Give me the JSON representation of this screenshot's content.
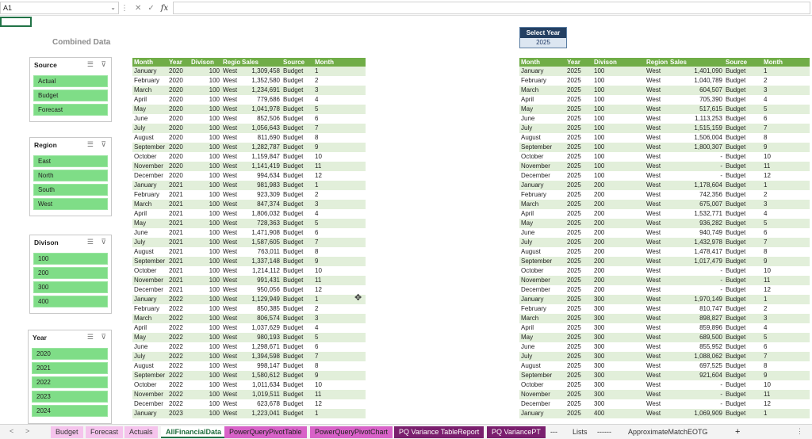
{
  "formula_bar": {
    "cell_ref": "A1",
    "fx": "fx",
    "cancel": "✕",
    "enter": "✓",
    "dots": "⋮"
  },
  "combined_title": "Combined Data",
  "slicers": [
    {
      "title": "Source",
      "items": [
        "Actual",
        "Budget",
        "Forecast"
      ]
    },
    {
      "title": "Region",
      "items": [
        "East",
        "North",
        "South",
        "West"
      ]
    },
    {
      "title": "Divison",
      "items": [
        "100",
        "200",
        "300",
        "400"
      ]
    },
    {
      "title": "Year",
      "items": [
        "2020",
        "2021",
        "2022",
        "2023",
        "2024"
      ]
    }
  ],
  "select_year": {
    "label": "Select Year",
    "value": "2025"
  },
  "left_table": {
    "headers": [
      "Month",
      "Year",
      "Divison",
      "Region",
      "Sales",
      "Source",
      "Month"
    ],
    "rows": [
      [
        "January",
        "2020",
        "100",
        "West",
        "1,309,458",
        "Budget",
        "1"
      ],
      [
        "February",
        "2020",
        "100",
        "West",
        "1,352,580",
        "Budget",
        "2"
      ],
      [
        "March",
        "2020",
        "100",
        "West",
        "1,234,691",
        "Budget",
        "3"
      ],
      [
        "April",
        "2020",
        "100",
        "West",
        "779,686",
        "Budget",
        "4"
      ],
      [
        "May",
        "2020",
        "100",
        "West",
        "1,041,978",
        "Budget",
        "5"
      ],
      [
        "June",
        "2020",
        "100",
        "West",
        "852,506",
        "Budget",
        "6"
      ],
      [
        "July",
        "2020",
        "100",
        "West",
        "1,056,643",
        "Budget",
        "7"
      ],
      [
        "August",
        "2020",
        "100",
        "West",
        "811,690",
        "Budget",
        "8"
      ],
      [
        "September",
        "2020",
        "100",
        "West",
        "1,282,787",
        "Budget",
        "9"
      ],
      [
        "October",
        "2020",
        "100",
        "West",
        "1,159,847",
        "Budget",
        "10"
      ],
      [
        "November",
        "2020",
        "100",
        "West",
        "1,141,419",
        "Budget",
        "11"
      ],
      [
        "December",
        "2020",
        "100",
        "West",
        "994,634",
        "Budget",
        "12"
      ],
      [
        "January",
        "2021",
        "100",
        "West",
        "981,983",
        "Budget",
        "1"
      ],
      [
        "February",
        "2021",
        "100",
        "West",
        "923,309",
        "Budget",
        "2"
      ],
      [
        "March",
        "2021",
        "100",
        "West",
        "847,374",
        "Budget",
        "3"
      ],
      [
        "April",
        "2021",
        "100",
        "West",
        "1,806,032",
        "Budget",
        "4"
      ],
      [
        "May",
        "2021",
        "100",
        "West",
        "728,363",
        "Budget",
        "5"
      ],
      [
        "June",
        "2021",
        "100",
        "West",
        "1,471,908",
        "Budget",
        "6"
      ],
      [
        "July",
        "2021",
        "100",
        "West",
        "1,587,605",
        "Budget",
        "7"
      ],
      [
        "August",
        "2021",
        "100",
        "West",
        "763,011",
        "Budget",
        "8"
      ],
      [
        "September",
        "2021",
        "100",
        "West",
        "1,337,148",
        "Budget",
        "9"
      ],
      [
        "October",
        "2021",
        "100",
        "West",
        "1,214,112",
        "Budget",
        "10"
      ],
      [
        "November",
        "2021",
        "100",
        "West",
        "991,431",
        "Budget",
        "11"
      ],
      [
        "December",
        "2021",
        "100",
        "West",
        "950,056",
        "Budget",
        "12"
      ],
      [
        "January",
        "2022",
        "100",
        "West",
        "1,129,949",
        "Budget",
        "1"
      ],
      [
        "February",
        "2022",
        "100",
        "West",
        "850,385",
        "Budget",
        "2"
      ],
      [
        "March",
        "2022",
        "100",
        "West",
        "806,574",
        "Budget",
        "3"
      ],
      [
        "April",
        "2022",
        "100",
        "West",
        "1,037,629",
        "Budget",
        "4"
      ],
      [
        "May",
        "2022",
        "100",
        "West",
        "980,193",
        "Budget",
        "5"
      ],
      [
        "June",
        "2022",
        "100",
        "West",
        "1,298,671",
        "Budget",
        "6"
      ],
      [
        "July",
        "2022",
        "100",
        "West",
        "1,394,598",
        "Budget",
        "7"
      ],
      [
        "August",
        "2022",
        "100",
        "West",
        "998,147",
        "Budget",
        "8"
      ],
      [
        "September",
        "2022",
        "100",
        "West",
        "1,580,612",
        "Budget",
        "9"
      ],
      [
        "October",
        "2022",
        "100",
        "West",
        "1,011,634",
        "Budget",
        "10"
      ],
      [
        "November",
        "2022",
        "100",
        "West",
        "1,019,511",
        "Budget",
        "11"
      ],
      [
        "December",
        "2022",
        "100",
        "West",
        "623,678",
        "Budget",
        "12"
      ],
      [
        "January",
        "2023",
        "100",
        "West",
        "1,223,041",
        "Budget",
        "1"
      ]
    ]
  },
  "right_table": {
    "headers": [
      "Month",
      "Year",
      "Divison",
      "Region",
      "Sales",
      "Source",
      "Month"
    ],
    "rows": [
      [
        "January",
        "2025",
        "100",
        "West",
        "1,401,090",
        "Budget",
        "1"
      ],
      [
        "February",
        "2025",
        "100",
        "West",
        "1,040,789",
        "Budget",
        "2"
      ],
      [
        "March",
        "2025",
        "100",
        "West",
        "604,507",
        "Budget",
        "3"
      ],
      [
        "April",
        "2025",
        "100",
        "West",
        "705,390",
        "Budget",
        "4"
      ],
      [
        "May",
        "2025",
        "100",
        "West",
        "517,615",
        "Budget",
        "5"
      ],
      [
        "June",
        "2025",
        "100",
        "West",
        "1,113,253",
        "Budget",
        "6"
      ],
      [
        "July",
        "2025",
        "100",
        "West",
        "1,515,159",
        "Budget",
        "7"
      ],
      [
        "August",
        "2025",
        "100",
        "West",
        "1,506,004",
        "Budget",
        "8"
      ],
      [
        "September",
        "2025",
        "100",
        "West",
        "1,800,307",
        "Budget",
        "9"
      ],
      [
        "October",
        "2025",
        "100",
        "West",
        "-",
        "Budget",
        "10"
      ],
      [
        "November",
        "2025",
        "100",
        "West",
        "-",
        "Budget",
        "11"
      ],
      [
        "December",
        "2025",
        "100",
        "West",
        "-",
        "Budget",
        "12"
      ],
      [
        "January",
        "2025",
        "200",
        "West",
        "1,178,604",
        "Budget",
        "1"
      ],
      [
        "February",
        "2025",
        "200",
        "West",
        "742,356",
        "Budget",
        "2"
      ],
      [
        "March",
        "2025",
        "200",
        "West",
        "675,007",
        "Budget",
        "3"
      ],
      [
        "April",
        "2025",
        "200",
        "West",
        "1,532,771",
        "Budget",
        "4"
      ],
      [
        "May",
        "2025",
        "200",
        "West",
        "936,282",
        "Budget",
        "5"
      ],
      [
        "June",
        "2025",
        "200",
        "West",
        "940,749",
        "Budget",
        "6"
      ],
      [
        "July",
        "2025",
        "200",
        "West",
        "1,432,978",
        "Budget",
        "7"
      ],
      [
        "August",
        "2025",
        "200",
        "West",
        "1,478,417",
        "Budget",
        "8"
      ],
      [
        "September",
        "2025",
        "200",
        "West",
        "1,017,479",
        "Budget",
        "9"
      ],
      [
        "October",
        "2025",
        "200",
        "West",
        "-",
        "Budget",
        "10"
      ],
      [
        "November",
        "2025",
        "200",
        "West",
        "-",
        "Budget",
        "11"
      ],
      [
        "December",
        "2025",
        "200",
        "West",
        "-",
        "Budget",
        "12"
      ],
      [
        "January",
        "2025",
        "300",
        "West",
        "1,970,149",
        "Budget",
        "1"
      ],
      [
        "February",
        "2025",
        "300",
        "West",
        "810,747",
        "Budget",
        "2"
      ],
      [
        "March",
        "2025",
        "300",
        "West",
        "898,827",
        "Budget",
        "3"
      ],
      [
        "April",
        "2025",
        "300",
        "West",
        "859,896",
        "Budget",
        "4"
      ],
      [
        "May",
        "2025",
        "300",
        "West",
        "689,500",
        "Budget",
        "5"
      ],
      [
        "June",
        "2025",
        "300",
        "West",
        "855,952",
        "Budget",
        "6"
      ],
      [
        "July",
        "2025",
        "300",
        "West",
        "1,088,062",
        "Budget",
        "7"
      ],
      [
        "August",
        "2025",
        "300",
        "West",
        "697,525",
        "Budget",
        "8"
      ],
      [
        "September",
        "2025",
        "300",
        "West",
        "921,604",
        "Budget",
        "9"
      ],
      [
        "October",
        "2025",
        "300",
        "West",
        "-",
        "Budget",
        "10"
      ],
      [
        "November",
        "2025",
        "300",
        "West",
        "-",
        "Budget",
        "11"
      ],
      [
        "December",
        "2025",
        "300",
        "West",
        "-",
        "Budget",
        "12"
      ],
      [
        "January",
        "2025",
        "400",
        "West",
        "1,069,909",
        "Budget",
        "1"
      ]
    ]
  },
  "sheet_tabs": [
    {
      "label": "Budget",
      "style": "pink"
    },
    {
      "label": "Forecast",
      "style": "pink"
    },
    {
      "label": "Actuals",
      "style": "pink"
    },
    {
      "label": "AllFinancialData",
      "style": "active"
    },
    {
      "label": "PowerQueryPivotTable",
      "style": "mag"
    },
    {
      "label": "PowerQueryPivotChart",
      "style": "mag"
    },
    {
      "label": "PQ Variance TableReport",
      "style": "purple"
    },
    {
      "label": "PQ VariancePT",
      "style": "purple"
    },
    {
      "label": "---",
      "style": "plain"
    },
    {
      "label": "Lists",
      "style": "plain"
    },
    {
      "label": "------",
      "style": "plain"
    },
    {
      "label": "ApproximateMatchEOTG",
      "style": "plain"
    },
    {
      "label": "+",
      "style": "add"
    }
  ],
  "tab_nav": {
    "prev": "<",
    "next": ">",
    "more": "⋮"
  },
  "icons": {
    "multiselect": "multi-select-icon",
    "clear_filter": "clear-filter-icon",
    "cursor": "move-cursor-icon"
  }
}
